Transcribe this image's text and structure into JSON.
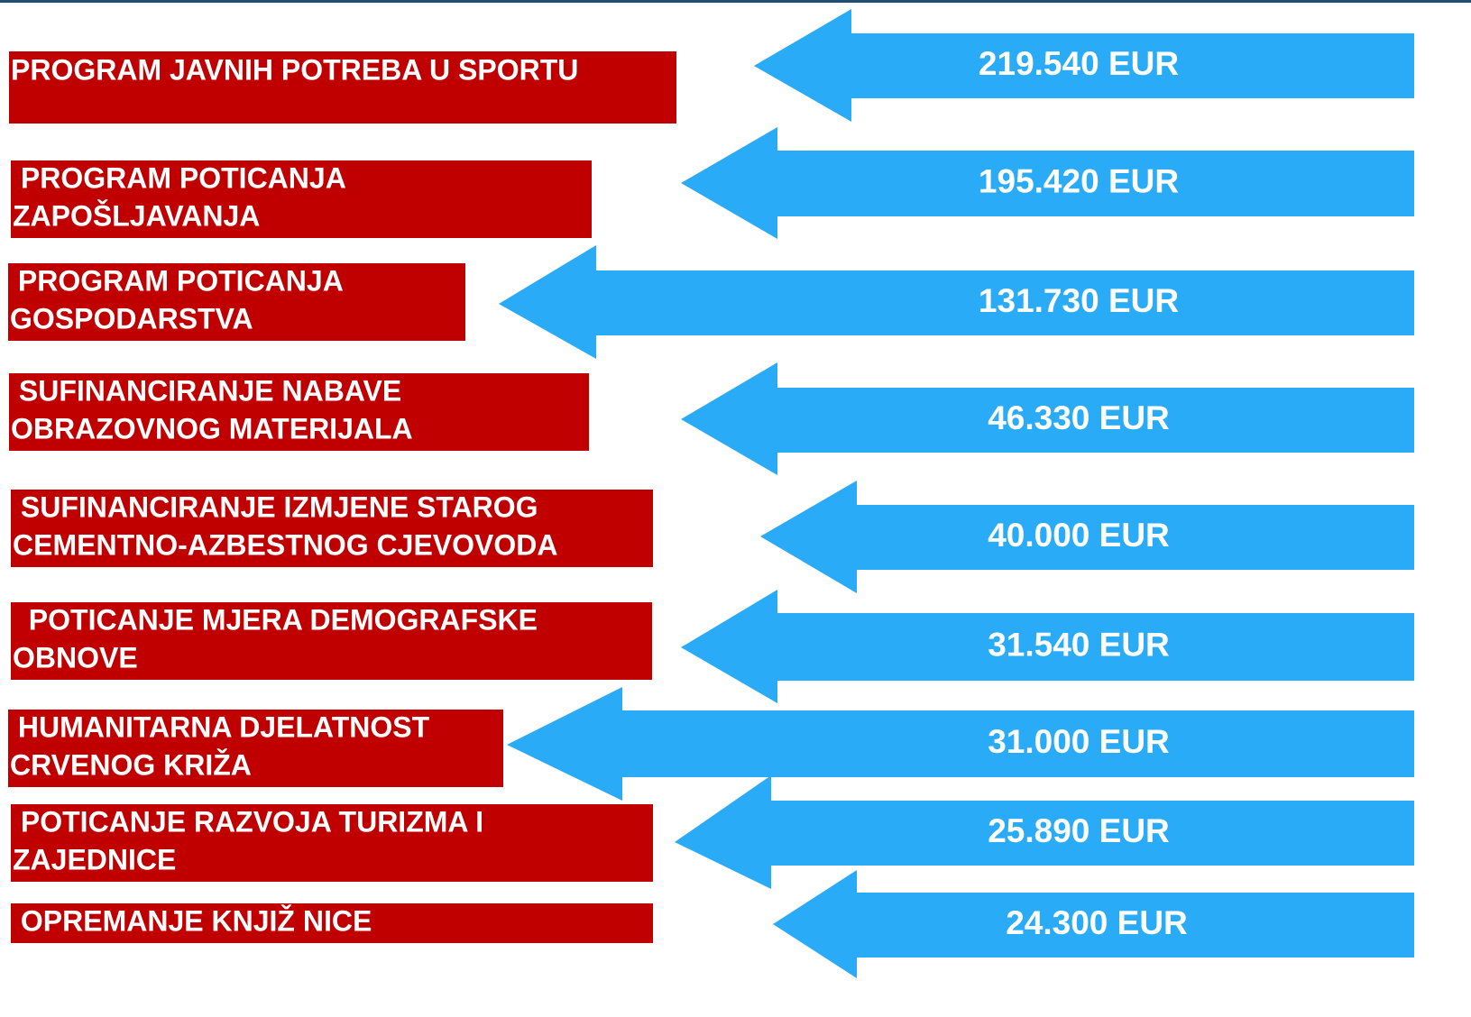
{
  "items": [
    {
      "label_lines": [
        "PROGRAM JAVNIH POTREBA U SPORTU"
      ],
      "amount": "219.540 EUR"
    },
    {
      "label_lines": [
        " PROGRAM POTICANJA",
        "ZAPOŠLJAVANJA"
      ],
      "amount": "195.420 EUR"
    },
    {
      "label_lines": [
        " PROGRAM POTICANJA",
        "GOSPODARSTVA"
      ],
      "amount": "131.730 EUR"
    },
    {
      "label_lines": [
        " SUFINANCIRANJE NABAVE",
        "OBRAZOVNOG MATERIJALA"
      ],
      "amount": "46.330 EUR"
    },
    {
      "label_lines": [
        " SUFINANCIRANJE IZMJENE STAROG",
        "CEMENTNO-AZBESTNOG CJEVOVODA"
      ],
      "amount": "40.000 EUR"
    },
    {
      "label_lines": [
        "  POTICANJE MJERA DEMOGRAFSKE",
        "OBNOVE"
      ],
      "amount": "31.540 EUR"
    },
    {
      "label_lines": [
        " HUMANITARNA DJELATNOST",
        "CRVENOG KRIŽA"
      ],
      "amount": "31.000 EUR"
    },
    {
      "label_lines": [
        " POTICANJE RAZVOJA TURIZMA I",
        "ZAJEDNICE"
      ],
      "amount": "25.890 EUR"
    },
    {
      "label_lines": [
        " OPREMANJE KNJIŽ NICE"
      ],
      "amount": "24.300 EUR"
    }
  ]
}
